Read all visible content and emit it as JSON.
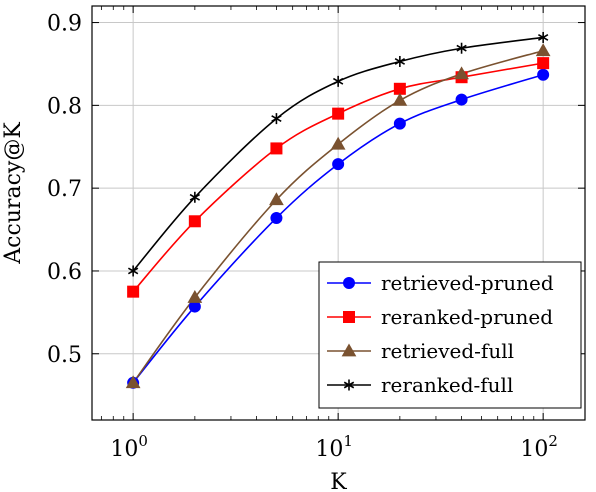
{
  "chart_data": {
    "type": "line",
    "xlabel": "K",
    "ylabel": "Accuracy@K",
    "xscale": "log",
    "xlim": [
      0.63,
      160
    ],
    "ylim": [
      0.42,
      0.92
    ],
    "grid": true,
    "legend_position": "bottom-right",
    "x_ticks": [
      {
        "value": 1,
        "base": "10",
        "exp": "0"
      },
      {
        "value": 10,
        "base": "10",
        "exp": "1"
      },
      {
        "value": 100,
        "base": "10",
        "exp": "2"
      }
    ],
    "y_ticks": [
      {
        "value": 0.5,
        "label": "0.5"
      },
      {
        "value": 0.6,
        "label": "0.6"
      },
      {
        "value": 0.7,
        "label": "0.7"
      },
      {
        "value": 0.8,
        "label": "0.8"
      },
      {
        "value": 0.9,
        "label": "0.9"
      }
    ],
    "x": [
      1,
      2,
      5,
      10,
      20,
      40,
      100
    ],
    "series": [
      {
        "name": "retrieved-pruned",
        "color": "#0000ff",
        "marker": "circle",
        "values": [
          0.465,
          0.557,
          0.664,
          0.729,
          0.778,
          0.807,
          0.837
        ]
      },
      {
        "name": "reranked-pruned",
        "color": "#ff0000",
        "marker": "square",
        "values": [
          0.575,
          0.66,
          0.748,
          0.79,
          0.82,
          0.834,
          0.851
        ]
      },
      {
        "name": "retrieved-full",
        "color": "#7a5230",
        "marker": "triangle",
        "values": [
          0.465,
          0.568,
          0.686,
          0.753,
          0.806,
          0.838,
          0.866
        ]
      },
      {
        "name": "reranked-full",
        "color": "#000000",
        "marker": "star",
        "values": [
          0.6,
          0.689,
          0.784,
          0.829,
          0.853,
          0.869,
          0.882
        ]
      }
    ]
  }
}
